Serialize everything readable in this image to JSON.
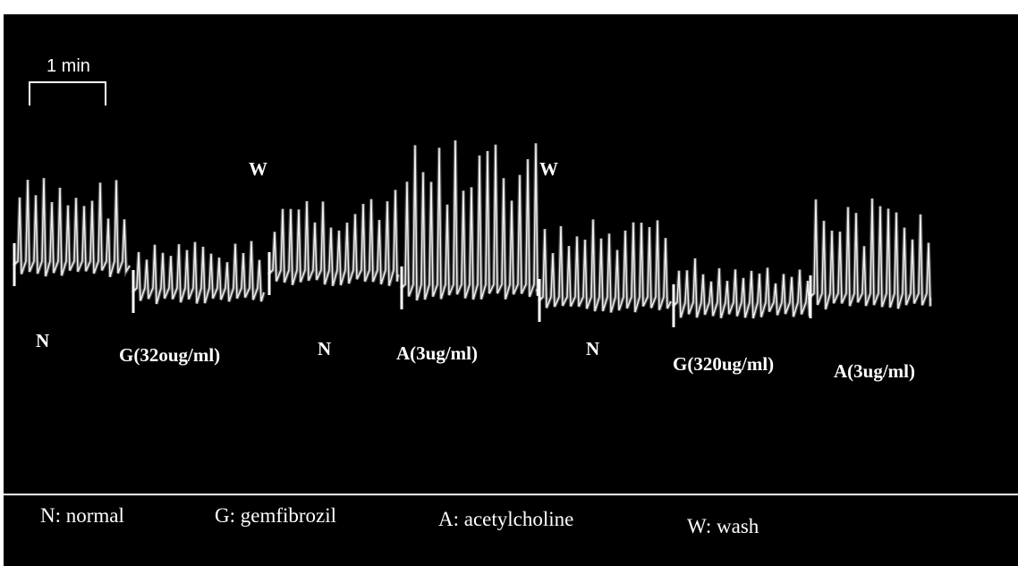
{
  "scale_bar": {
    "label": "1 min"
  },
  "wash_marks": [
    "W",
    "W"
  ],
  "segment_labels": [
    "N",
    "G(32oug/ml)",
    "N",
    "A(3ug/ml)",
    "N",
    "G(320ug/ml)",
    "A(3ug/ml)"
  ],
  "legend": [
    "N: normal",
    "G: gemfibrozil",
    "A: acetylcholine",
    "W: wash"
  ]
}
